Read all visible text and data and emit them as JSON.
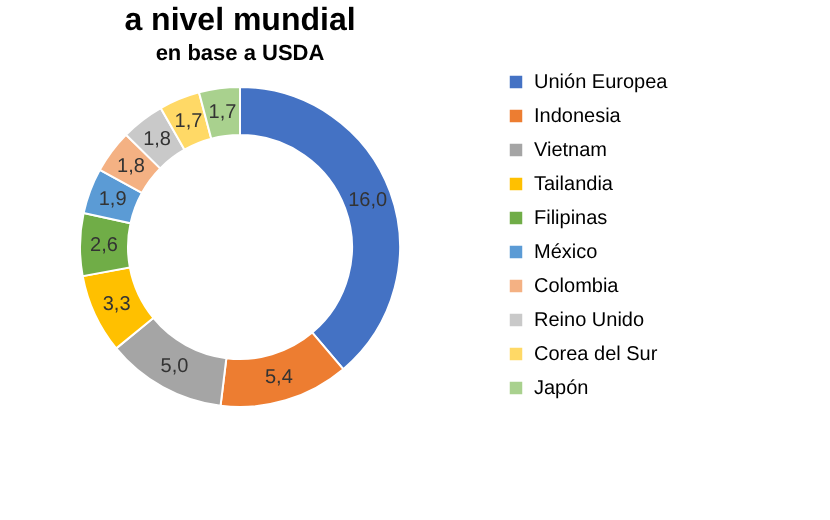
{
  "chart_data": {
    "type": "donut",
    "title": "a nivel mundial",
    "subtitle": "en base a USDA",
    "categories": [
      "Unión Europea",
      "Indonesia",
      "Vietnam",
      "Tailandia",
      "Filipinas",
      "México",
      "Colombia",
      "Reino Unido",
      "Corea del Sur",
      "Japón"
    ],
    "values": [
      16.0,
      5.4,
      5.0,
      3.3,
      2.6,
      1.9,
      1.8,
      1.8,
      1.7,
      1.7
    ],
    "value_labels": [
      "16,0",
      "5,4",
      "5,0",
      "3,3",
      "2,6",
      "1,9",
      "1,8",
      "1,8",
      "1,7",
      "1,7"
    ],
    "colors": [
      "#4472c4",
      "#ed7d31",
      "#a5a5a5",
      "#ffc000",
      "#70ad47",
      "#5b9bd5",
      "#f4b183",
      "#c9c9c9",
      "#ffd966",
      "#a9d18e"
    ],
    "legend": "right"
  }
}
